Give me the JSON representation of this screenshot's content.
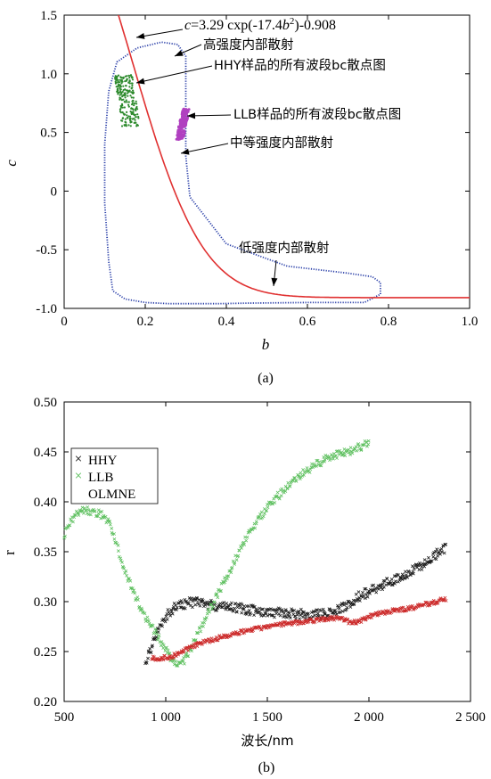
{
  "chart_data": [
    {
      "id": "a",
      "type": "scatter",
      "caption": "(a)",
      "xlabel": "b",
      "ylabel": "c",
      "xlim": [
        0,
        1.0
      ],
      "ylim": [
        -1.0,
        1.5
      ],
      "xticks": [
        "0",
        "0.2",
        "0.4",
        "0.6",
        "0.8",
        "1.0"
      ],
      "xtick_values": [
        0,
        0.2,
        0.4,
        0.6,
        0.8,
        1.0
      ],
      "yticks": [
        "1.5",
        "1.0",
        "0.5",
        "0",
        "-0.5",
        "-1.0"
      ],
      "ytick_values": [
        1.5,
        1.0,
        0.5,
        0,
        -0.5,
        -1.0
      ],
      "grid": false,
      "curve": {
        "equation_prefix": "c",
        "equation_mid": "=3.29 cxp(-17.4",
        "equation_var": "b",
        "equation_exp": "2",
        "equation_suffix": ")-0.908",
        "a": 3.29,
        "k": -17.4,
        "offset": -0.908,
        "color": "#e03030"
      },
      "boundary": {
        "color": "#2a3fa8",
        "x": [
          0.12,
          0.11,
          0.1,
          0.1,
          0.11,
          0.13,
          0.16,
          0.2,
          0.24,
          0.28,
          0.31,
          0.32,
          0.31,
          0.3,
          0.3,
          0.3,
          0.3,
          0.31,
          0.34,
          0.4,
          0.46,
          0.54,
          0.62,
          0.7,
          0.75,
          0.78,
          0.78,
          0.76,
          0.72,
          0.65,
          0.56,
          0.46,
          0.36,
          0.26,
          0.18,
          0.13,
          0.12
        ],
        "y": [
          0.95,
          0.6,
          0.2,
          -0.2,
          -0.55,
          -0.8,
          -0.9,
          -0.94,
          -0.96,
          -0.96,
          -0.96,
          -0.96,
          -0.955,
          -0.95,
          -0.95,
          -0.95,
          -0.95,
          -0.95,
          -0.95,
          -0.95,
          -0.95,
          -0.95,
          -0.95,
          -0.945,
          -0.9,
          -0.82,
          -0.72,
          -0.72,
          -0.72,
          -0.7,
          -0.62,
          -0.52,
          -0.38,
          0.05,
          0.35,
          0.6,
          0.95
        ]
      },
      "boundary_loop": {
        "x": [
          0.13,
          0.18,
          0.24,
          0.28,
          0.3,
          0.3,
          0.3,
          0.31,
          0.4,
          0.55,
          0.7,
          0.76,
          0.78,
          0.78,
          0.74,
          0.6,
          0.45,
          0.38,
          0.32,
          0.3,
          0.3,
          0.3,
          0.29,
          0.26,
          0.2,
          0.15,
          0.12,
          0.11,
          0.1,
          0.1,
          0.11,
          0.13
        ],
        "y": [
          1.1,
          1.22,
          1.27,
          1.25,
          1.15,
          0.8,
          0.3,
          -0.05,
          -0.45,
          -0.64,
          -0.7,
          -0.73,
          -0.78,
          -0.88,
          -0.95,
          -0.95,
          -0.955,
          -0.96,
          -0.96,
          -0.96,
          -0.96,
          -0.96,
          -0.96,
          -0.96,
          -0.95,
          -0.92,
          -0.85,
          -0.6,
          -0.1,
          0.4,
          0.85,
          1.1
        ]
      },
      "series": [
        {
          "name": "HHY",
          "color": "#2d8a2d",
          "x_range": [
            0.13,
            0.19
          ],
          "y_range": [
            0.55,
            0.99
          ],
          "n": 220
        },
        {
          "name": "LLB",
          "color": "#b040c0",
          "x_range": [
            0.28,
            0.31
          ],
          "y_range": [
            0.44,
            0.7
          ],
          "n": 150
        }
      ],
      "annotations": [
        {
          "text": "高强度内部散射",
          "x": 0.35,
          "y": 1.26
        },
        {
          "text": "HHY样品的所有波段bc散点图",
          "x": 0.38,
          "y": 1.08
        },
        {
          "text": "LLB样品的所有波段bc散点图",
          "x": 0.42,
          "y": 0.64
        },
        {
          "text": "中等强度内部散射",
          "x": 0.4,
          "y": 0.38
        },
        {
          "text": "低强度内部散射",
          "x": 0.43,
          "y": -0.51
        }
      ]
    },
    {
      "id": "b",
      "type": "scatter",
      "caption": "(b)",
      "xlabel": "波长/nm",
      "ylabel": "r",
      "xlim": [
        500,
        2500
      ],
      "ylim": [
        0.2,
        0.5
      ],
      "xticks": [
        "500",
        "1 000",
        "1 500",
        "2 000",
        "2 500"
      ],
      "xtick_values": [
        500,
        1000,
        1500,
        2000,
        2500
      ],
      "yticks": [
        "0.50",
        "0.45",
        "0.40",
        "0.35",
        "0.30",
        "0.25",
        "0.20"
      ],
      "ytick_values": [
        0.5,
        0.45,
        0.4,
        0.35,
        0.3,
        0.25,
        0.2
      ],
      "grid": false,
      "legend_position": "top-left",
      "series": [
        {
          "name": "HHY",
          "color": "#1a1a1a",
          "x": [
            900,
            930,
            960,
            1000,
            1050,
            1100,
            1150,
            1200,
            1300,
            1400,
            1500,
            1600,
            1700,
            1800,
            1850,
            1900,
            1950,
            2000,
            2050,
            2100,
            2150,
            2200,
            2250,
            2300,
            2350,
            2380
          ],
          "y": [
            0.24,
            0.255,
            0.27,
            0.285,
            0.295,
            0.298,
            0.3,
            0.297,
            0.295,
            0.292,
            0.29,
            0.288,
            0.287,
            0.288,
            0.292,
            0.298,
            0.305,
            0.31,
            0.315,
            0.32,
            0.325,
            0.33,
            0.335,
            0.342,
            0.35,
            0.355
          ]
        },
        {
          "name": "LLB",
          "color": "#5fc060",
          "x": [
            500,
            530,
            560,
            600,
            650,
            700,
            730,
            760,
            800,
            850,
            900,
            950,
            1000,
            1040,
            1080,
            1120,
            1150,
            1200,
            1250,
            1300,
            1350,
            1400,
            1450,
            1500,
            1550,
            1600,
            1650,
            1700,
            1750,
            1800,
            1850,
            1900,
            1950,
            2000
          ],
          "y": [
            0.365,
            0.38,
            0.388,
            0.392,
            0.39,
            0.385,
            0.375,
            0.355,
            0.33,
            0.305,
            0.285,
            0.268,
            0.252,
            0.24,
            0.238,
            0.25,
            0.265,
            0.285,
            0.305,
            0.325,
            0.345,
            0.365,
            0.38,
            0.395,
            0.405,
            0.415,
            0.425,
            0.432,
            0.438,
            0.445,
            0.447,
            0.45,
            0.455,
            0.458
          ]
        },
        {
          "name": "OLMNE",
          "color": "#cc2a2a",
          "x": [
            930,
            980,
            1030,
            1080,
            1130,
            1200,
            1250,
            1300,
            1400,
            1500,
            1600,
            1700,
            1800,
            1850,
            1900,
            1950,
            2000,
            2050,
            2100,
            2150,
            2200,
            2250,
            2300,
            2350,
            2380
          ],
          "y": [
            0.243,
            0.243,
            0.245,
            0.25,
            0.255,
            0.26,
            0.263,
            0.266,
            0.271,
            0.275,
            0.278,
            0.28,
            0.283,
            0.284,
            0.28,
            0.28,
            0.285,
            0.288,
            0.29,
            0.292,
            0.293,
            0.296,
            0.298,
            0.301,
            0.303
          ]
        }
      ]
    }
  ]
}
